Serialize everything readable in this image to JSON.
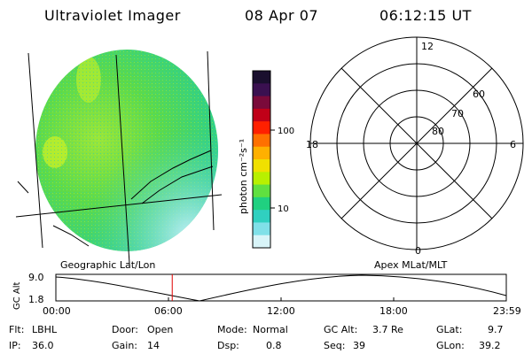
{
  "header": {
    "title": "Ultraviolet Imager",
    "date": "08 Apr 07",
    "time": "06:12:15 UT"
  },
  "colorbar": {
    "label": "photon cm⁻²s⁻¹",
    "ticks": [
      "100",
      "10"
    ],
    "colors": [
      "#1a0f2e",
      "#3a1050",
      "#7a0a3a",
      "#c00018",
      "#ff2000",
      "#ff7000",
      "#ffb000",
      "#f0e000",
      "#b8f000",
      "#60e040",
      "#20d080",
      "#30d0c0",
      "#80e0e8",
      "#d8f4f8"
    ]
  },
  "polar": {
    "mlt_top": "12",
    "mlt_bottom": "0",
    "mlt_left": "18",
    "mlt_right": "6",
    "lat_labels": [
      "60",
      "70",
      "80"
    ]
  },
  "timeline": {
    "left_caption": "Geographic Lat/Lon",
    "right_caption": "Apex MLat/MLT",
    "y_label": "GC Alt",
    "y_ticks": [
      "9.0",
      "1.8"
    ],
    "x_ticks": [
      "00:00",
      "06:00",
      "12:00",
      "18:00",
      "23:59"
    ],
    "current_time_hours": 6.2
  },
  "info": {
    "flt_label": "Flt:",
    "flt_value": "LBHL",
    "ip_label": "IP:",
    "ip_value": "36.0",
    "door_label": "Door:",
    "door_value": "Open",
    "gain_label": "Gain:",
    "gain_value": "14",
    "mode_label": "Mode:",
    "mode_value": "Normal",
    "dsp_label": "Dsp:",
    "dsp_value": "0.8",
    "gcalt_label": "GC Alt:",
    "gcalt_value": "3.7 Re",
    "seq_label": "Seq:",
    "seq_value": "39",
    "glat_label": "GLat:",
    "glat_value": "9.7",
    "glon_label": "GLon:",
    "glon_value": "39.2"
  }
}
